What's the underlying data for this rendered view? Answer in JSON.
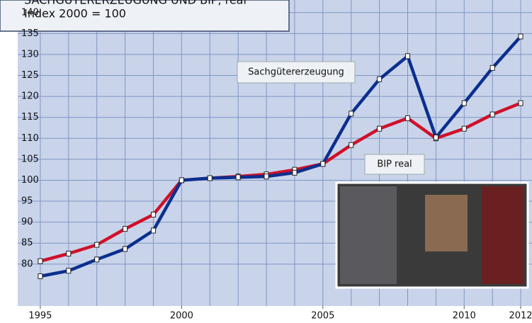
{
  "chart_data": {
    "type": "line",
    "title": "SACHGÜTERERZEUGUNG UND BIP, real",
    "subtitle": "Index 2000 = 100",
    "x": [
      1995,
      1996,
      1997,
      1998,
      1999,
      2000,
      2001,
      2002,
      2003,
      2004,
      2005,
      2006,
      2007,
      2008,
      2009,
      2010,
      2011,
      2012
    ],
    "series": [
      {
        "name": "BIP real",
        "color": "#d0102a",
        "values": [
          80.7,
          82.5,
          84.6,
          88.4,
          91.8,
          100,
          100.5,
          100.9,
          101.4,
          102.5,
          103.9,
          108.4,
          112.3,
          114.8,
          110.0,
          112.3,
          115.7,
          118.4
        ]
      },
      {
        "name": "Sachgütererzeugung",
        "color": "#0b2f8f",
        "values": [
          77.1,
          78.4,
          81.1,
          83.6,
          88.0,
          100,
          100.5,
          100.7,
          100.9,
          101.8,
          103.9,
          115.9,
          124.1,
          129.6,
          110.2,
          118.4,
          126.8,
          134.3
        ]
      }
    ],
    "xlim": [
      1994.2,
      2012.4
    ],
    "xticks": [
      1995,
      2000,
      2005,
      2010,
      2012
    ],
    "ylim": [
      70,
      143
    ],
    "yticks": [
      80,
      85,
      90,
      95,
      100,
      105,
      110,
      115,
      120,
      125,
      130,
      135,
      140
    ],
    "grid": true
  }
}
